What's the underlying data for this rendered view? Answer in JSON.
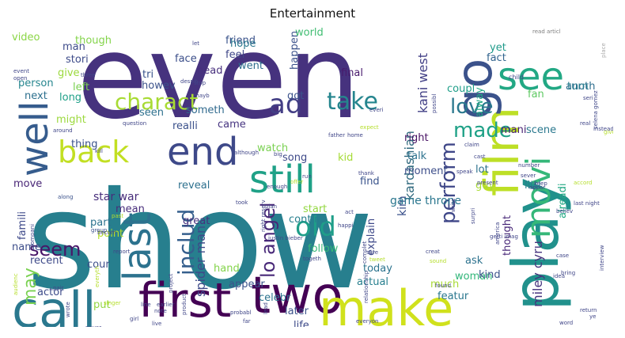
{
  "chart_data": {
    "type": "wordcloud",
    "title": "Entertainment",
    "words": [
      {
        "text": "even",
        "color": "#46327e",
        "rank": 1
      },
      {
        "text": "show",
        "color": "#277f8e",
        "rank": 2
      },
      {
        "text": "first",
        "color": "#440154",
        "rank": 3
      },
      {
        "text": "two",
        "color": "#440154",
        "rank": 4
      },
      {
        "text": "make",
        "color": "#d0e11c",
        "rank": 5
      },
      {
        "text": "call",
        "color": "#2a788e",
        "rank": 6
      },
      {
        "text": "play",
        "color": "#21918c",
        "rank": 7
      },
      {
        "text": "film",
        "color": "#bddf26",
        "rank": 8
      },
      {
        "text": "well",
        "color": "#365c8d",
        "rank": 9
      },
      {
        "text": "go",
        "color": "#3b528b",
        "rank": 10
      },
      {
        "text": "see",
        "color": "#22a884",
        "rank": 11
      },
      {
        "text": "still",
        "color": "#1fa187",
        "rank": 12
      },
      {
        "text": "back",
        "color": "#c2df23",
        "rank": 13
      },
      {
        "text": "end",
        "color": "#3e4989",
        "rank": 14
      },
      {
        "text": "last",
        "color": "#2c728e",
        "rank": 15
      },
      {
        "text": "movi",
        "color": "#35b779",
        "rank": 16
      },
      {
        "text": "old",
        "color": "#1f9e89",
        "rank": 17
      },
      {
        "text": "take",
        "color": "#25858e",
        "rank": 18
      },
      {
        "text": "charact",
        "color": "#a8db34",
        "rank": 19
      },
      {
        "text": "made",
        "color": "#1fa187",
        "rank": 20
      },
      {
        "text": "love",
        "color": "#2a788e",
        "rank": 21
      },
      {
        "text": "ad",
        "color": "#433e85",
        "rank": 22
      },
      {
        "text": "perform",
        "color": "#3f4788",
        "rank": 23
      },
      {
        "text": "includ",
        "color": "#355f8d",
        "rank": 24
      },
      {
        "text": "seem",
        "color": "#481668",
        "rank": 25
      },
      {
        "text": "may",
        "color": "#7ad151",
        "rank": 26
      },
      {
        "text": "lo angel",
        "color": "#482878",
        "rank": 27
      },
      {
        "text": "kardashian",
        "color": "#30697e",
        "rank": 28
      },
      {
        "text": "kim",
        "color": "#3b518b",
        "rank": 29
      },
      {
        "text": "kani west",
        "color": "#424086",
        "rank": 30
      },
      {
        "text": "miley cyru",
        "color": "#46337e",
        "rank": 31
      },
      {
        "text": "spider man",
        "color": "#3e4a89",
        "rank": 32
      },
      {
        "text": "game throne",
        "color": "#2a768e",
        "rank": 33
      },
      {
        "text": "star war",
        "color": "#472d7b",
        "rank": 34
      },
      {
        "text": "video",
        "color": "#8bd646",
        "rank": 35
      },
      {
        "text": "though",
        "color": "#84d44b",
        "rank": 36
      },
      {
        "text": "face",
        "color": "#3c4f8a",
        "rank": 37
      },
      {
        "text": "friend",
        "color": "#3a538b",
        "rank": 38
      },
      {
        "text": "world",
        "color": "#40bd72",
        "rank": 39
      },
      {
        "text": "fact",
        "color": "#32648e",
        "rank": 40
      },
      {
        "text": "man",
        "color": "#3e4c8a",
        "rank": 41
      },
      {
        "text": "stori",
        "color": "#3e4c8a",
        "rank": 42
      },
      {
        "text": "person",
        "color": "#25858e",
        "rank": 43
      },
      {
        "text": "give",
        "color": "#9bd93c",
        "rank": 44
      },
      {
        "text": "tri",
        "color": "#3a548c",
        "rank": 45
      },
      {
        "text": "hope",
        "color": "#2a778e",
        "rank": 46
      },
      {
        "text": "feel",
        "color": "#3f4788",
        "rank": 47
      },
      {
        "text": "went",
        "color": "#2e6e8e",
        "rank": 48
      },
      {
        "text": "howev",
        "color": "#3b528b",
        "rank": 49
      },
      {
        "text": "head",
        "color": "#472f7d",
        "rank": 50
      },
      {
        "text": "final",
        "color": "#481a6c",
        "rank": 51
      },
      {
        "text": "happen",
        "color": "#3b528b",
        "rank": 52
      },
      {
        "text": "coupl",
        "color": "#1f9e89",
        "rank": 53
      },
      {
        "text": "yet",
        "color": "#1f9a8a",
        "rank": 54
      },
      {
        "text": "anoth",
        "color": "#2e6e8e",
        "rank": 55
      },
      {
        "text": "turn",
        "color": "#287d8e",
        "rank": 56
      },
      {
        "text": "fan",
        "color": "#5ec962",
        "rank": 57
      },
      {
        "text": "next",
        "color": "#2d708e",
        "rank": 58
      },
      {
        "text": "long",
        "color": "#1fa088",
        "rank": 59
      },
      {
        "text": "left",
        "color": "#7ad151",
        "rank": 60
      },
      {
        "text": "might",
        "color": "#9bd93c",
        "rank": 61
      },
      {
        "text": "seen",
        "color": "#2d708e",
        "rank": 62
      },
      {
        "text": "got",
        "color": "#3b528b",
        "rank": 63
      },
      {
        "text": "alway",
        "color": "#22a884",
        "rank": 64
      },
      {
        "text": "right",
        "color": "#471063",
        "rank": 65
      },
      {
        "text": "mani",
        "color": "#482173",
        "rank": 66
      },
      {
        "text": "scene",
        "color": "#2a788e",
        "rank": 67
      },
      {
        "text": "thing",
        "color": "#3b528b",
        "rank": 68
      },
      {
        "text": "someth",
        "color": "#306a8e",
        "rank": 69
      },
      {
        "text": "realli",
        "color": "#3b518b",
        "rank": 70
      },
      {
        "text": "came",
        "color": "#463480",
        "rank": 71
      },
      {
        "text": "watch",
        "color": "#7ad151",
        "rank": 72
      },
      {
        "text": "song",
        "color": "#3e4989",
        "rank": 73
      },
      {
        "text": "kid",
        "color": "#a5db36",
        "rank": 74
      },
      {
        "text": "talk",
        "color": "#2c728e",
        "rank": 75
      },
      {
        "text": "moment",
        "color": "#3d4e8a",
        "rank": 76
      },
      {
        "text": "lot",
        "color": "#2c728e",
        "rank": 77
      },
      {
        "text": "guy",
        "color": "#a8db34",
        "rank": 78
      },
      {
        "text": "littl",
        "color": "#277f8e",
        "rank": 79
      },
      {
        "text": "move",
        "color": "#482576",
        "rank": 80
      },
      {
        "text": "reveal",
        "color": "#2d708e",
        "rank": 81
      },
      {
        "text": "find",
        "color": "#3a548c",
        "rank": 82
      },
      {
        "text": "part",
        "color": "#2c728e",
        "rank": 83
      },
      {
        "text": "mean",
        "color": "#472d7b",
        "rank": 84
      },
      {
        "text": "point",
        "color": "#b5de2b",
        "rank": 85
      },
      {
        "text": "great",
        "color": "#46317e",
        "rank": 86
      },
      {
        "text": "start",
        "color": "#93d741",
        "rank": 87
      },
      {
        "text": "continu",
        "color": "#277f8e",
        "rank": 88
      },
      {
        "text": "explain",
        "color": "#3e4989",
        "rank": 89
      },
      {
        "text": "alreadi",
        "color": "#22a884",
        "rank": 90
      },
      {
        "text": "thought",
        "color": "#482878",
        "rank": 91
      },
      {
        "text": "famili",
        "color": "#3e4989",
        "rank": 92
      },
      {
        "text": "name",
        "color": "#3d4d8a",
        "rank": 93
      },
      {
        "text": "recent",
        "color": "#3e4a89",
        "rank": 94
      },
      {
        "text": "cour",
        "color": "#3d4e8a",
        "rank": 95
      },
      {
        "text": "hand",
        "color": "#84d44b",
        "rank": 96
      },
      {
        "text": "follow",
        "color": "#37b878",
        "rank": 97
      },
      {
        "text": "today",
        "color": "#2c738e",
        "rank": 98
      },
      {
        "text": "woman",
        "color": "#32b67a",
        "rank": 99
      },
      {
        "text": "ask",
        "color": "#2c728e",
        "rank": 100
      },
      {
        "text": "kind",
        "color": "#3b528b",
        "rank": 101
      },
      {
        "text": "actor",
        "color": "#3e4c8a",
        "rank": 102
      },
      {
        "text": "appear",
        "color": "#3b528b",
        "rank": 103
      },
      {
        "text": "celebr",
        "color": "#2c738e",
        "rank": 104
      },
      {
        "text": "actual",
        "color": "#277f8e",
        "rank": 105
      },
      {
        "text": "much",
        "color": "#a8db34",
        "rank": 106
      },
      {
        "text": "featur",
        "color": "#2a778e",
        "rank": 107
      },
      {
        "text": "put",
        "color": "#93d741",
        "rank": 108
      },
      {
        "text": "later",
        "color": "#3b528b",
        "rank": 109
      },
      {
        "text": "life",
        "color": "#3e4a89",
        "rank": 110
      },
      {
        "text": "sinc",
        "color": "#2a768e",
        "rank": 111
      },
      {
        "text": "read articl",
        "color": "#7e7e7e",
        "rank": 112
      },
      {
        "text": "place",
        "color": "#aaaaaa",
        "rank": 113
      },
      {
        "text": "child",
        "color": "#404688",
        "rank": 114
      },
      {
        "text": "selena gomez",
        "color": "#3f4788",
        "rank": 115
      },
      {
        "text": "possibl",
        "color": "#404688",
        "rank": 116
      },
      {
        "text": "despit",
        "color": "#404688",
        "rank": 117
      },
      {
        "text": "let",
        "color": "#404688",
        "rank": 118
      },
      {
        "text": "mayb",
        "color": "#404688",
        "rank": 119
      },
      {
        "text": "stop",
        "color": "#404688",
        "rank": 120
      },
      {
        "text": "question",
        "color": "#404688",
        "rank": 121
      },
      {
        "text": "kill",
        "color": "#404688",
        "rank": 122
      },
      {
        "text": "around",
        "color": "#404688",
        "rank": 123
      },
      {
        "text": "three",
        "color": "#404688",
        "rank": 124
      },
      {
        "text": "event",
        "color": "#404688",
        "rank": 125
      },
      {
        "text": "open",
        "color": "#404688",
        "rank": 126
      },
      {
        "text": "audienc",
        "color": "#b5de2b",
        "rank": 127
      },
      {
        "text": "compani",
        "color": "#404688",
        "rank": 128
      },
      {
        "text": "along",
        "color": "#3b528b",
        "rank": 129
      },
      {
        "text": "group",
        "color": "#3b528b",
        "rank": 130
      },
      {
        "text": "past",
        "color": "#b5de2b",
        "rank": 131
      },
      {
        "text": "becom",
        "color": "#404688",
        "rank": 132
      },
      {
        "text": "report",
        "color": "#404688",
        "rank": 133
      },
      {
        "text": "everyth",
        "color": "#b5de2b",
        "rank": 134
      },
      {
        "text": "pair",
        "color": "#404688",
        "rank": 135
      },
      {
        "text": "singer",
        "color": "#b5de2b",
        "rank": 136
      },
      {
        "text": "wrote",
        "color": "#404688",
        "rank": 137
      },
      {
        "text": "never",
        "color": "#404688",
        "rank": 138
      },
      {
        "text": "line",
        "color": "#404688",
        "rank": 139
      },
      {
        "text": "girl",
        "color": "#404688",
        "rank": 140
      },
      {
        "text": "note",
        "color": "#404688",
        "rank": 141
      },
      {
        "text": "live",
        "color": "#404688",
        "rank": 142
      },
      {
        "text": "earlier",
        "color": "#404688",
        "rank": 143
      },
      {
        "text": "project",
        "color": "#404688",
        "rank": 144
      },
      {
        "text": "product",
        "color": "#404688",
        "rank": 145
      },
      {
        "text": "although",
        "color": "#404688",
        "rank": 146
      },
      {
        "text": "big",
        "color": "#404688",
        "rank": 147
      },
      {
        "text": "enough",
        "color": "#404688",
        "rank": 148
      },
      {
        "text": "took",
        "color": "#404688",
        "rank": 149
      },
      {
        "text": "plan",
        "color": "#404688",
        "rank": 150
      },
      {
        "text": "right reserv",
        "color": "#404688",
        "rank": 151
      },
      {
        "text": "justin bieber",
        "color": "#404688",
        "rank": 152
      },
      {
        "text": "probabl",
        "color": "#404688",
        "rank": 153
      },
      {
        "text": "far",
        "color": "#404688",
        "rank": 154
      },
      {
        "text": "lead",
        "color": "#404688",
        "rank": 155
      },
      {
        "text": "father",
        "color": "#404688",
        "rank": 156
      },
      {
        "text": "home",
        "color": "#404688",
        "rank": 157
      },
      {
        "text": "run",
        "color": "#404688",
        "rank": 158
      },
      {
        "text": "offer",
        "color": "#b5de2b",
        "rank": 159
      },
      {
        "text": "thank",
        "color": "#404688",
        "rank": 160
      },
      {
        "text": "togeth",
        "color": "#404688",
        "rank": 161
      },
      {
        "text": "happi",
        "color": "#404688",
        "rank": 162
      },
      {
        "text": "act",
        "color": "#404688",
        "rank": 163
      },
      {
        "text": "relationship",
        "color": "#404688",
        "rank": 164
      },
      {
        "text": "complet",
        "color": "#404688",
        "rank": 165
      },
      {
        "text": "sure",
        "color": "#404688",
        "rank": 166
      },
      {
        "text": "tweet",
        "color": "#b5de2b",
        "rank": 167
      },
      {
        "text": "sound",
        "color": "#b5de2b",
        "rank": 168
      },
      {
        "text": "creat",
        "color": "#404688",
        "rank": 169
      },
      {
        "text": "found",
        "color": "#404688",
        "rank": 170
      },
      {
        "text": "box offic",
        "color": "#404688",
        "rank": 171
      },
      {
        "text": "everyon",
        "color": "#404688",
        "rank": 172
      },
      {
        "text": "everi",
        "color": "#404688",
        "rank": 173
      },
      {
        "text": "expect",
        "color": "#b5de2b",
        "rank": 174
      },
      {
        "text": "claim",
        "color": "#404688",
        "rank": 175
      },
      {
        "text": "speak",
        "color": "#404688",
        "rank": 176
      },
      {
        "text": "cast",
        "color": "#404688",
        "rank": 177
      },
      {
        "text": "present",
        "color": "#404688",
        "rank": 178
      },
      {
        "text": "write",
        "color": "#404688",
        "rank": 179
      },
      {
        "text": "surpri",
        "color": "#404688",
        "rank": 180
      },
      {
        "text": "getti imag",
        "color": "#404688",
        "rank": 181
      },
      {
        "text": "america",
        "color": "#404688",
        "rank": 182
      },
      {
        "text": "number",
        "color": "#404688",
        "rank": 183
      },
      {
        "text": "sever",
        "color": "#404688",
        "rank": 184
      },
      {
        "text": "appar",
        "color": "#404688",
        "rank": 185
      },
      {
        "text": "keep",
        "color": "#404688",
        "rank": 186
      },
      {
        "text": "accord",
        "color": "#b5de2b",
        "rank": 187
      },
      {
        "text": "last night",
        "color": "#404688",
        "rank": 188
      },
      {
        "text": "believ",
        "color": "#404688",
        "rank": 189
      },
      {
        "text": "case",
        "color": "#404688",
        "rank": 190
      },
      {
        "text": "bring",
        "color": "#404688",
        "rank": 191
      },
      {
        "text": "idea",
        "color": "#404688",
        "rank": 192
      },
      {
        "text": "interview",
        "color": "#404688",
        "rank": 193
      },
      {
        "text": "return",
        "color": "#404688",
        "rank": 194
      },
      {
        "text": "ye",
        "color": "#404688",
        "rank": 195
      },
      {
        "text": "word",
        "color": "#404688",
        "rank": 196
      },
      {
        "text": "seri",
        "color": "#404688",
        "rank": 197
      },
      {
        "text": "real",
        "color": "#404688",
        "rank": 198
      },
      {
        "text": "instead",
        "color": "#404688",
        "rank": 199
      },
      {
        "text": "given",
        "color": "#b5de2b",
        "rank": 200
      }
    ]
  }
}
